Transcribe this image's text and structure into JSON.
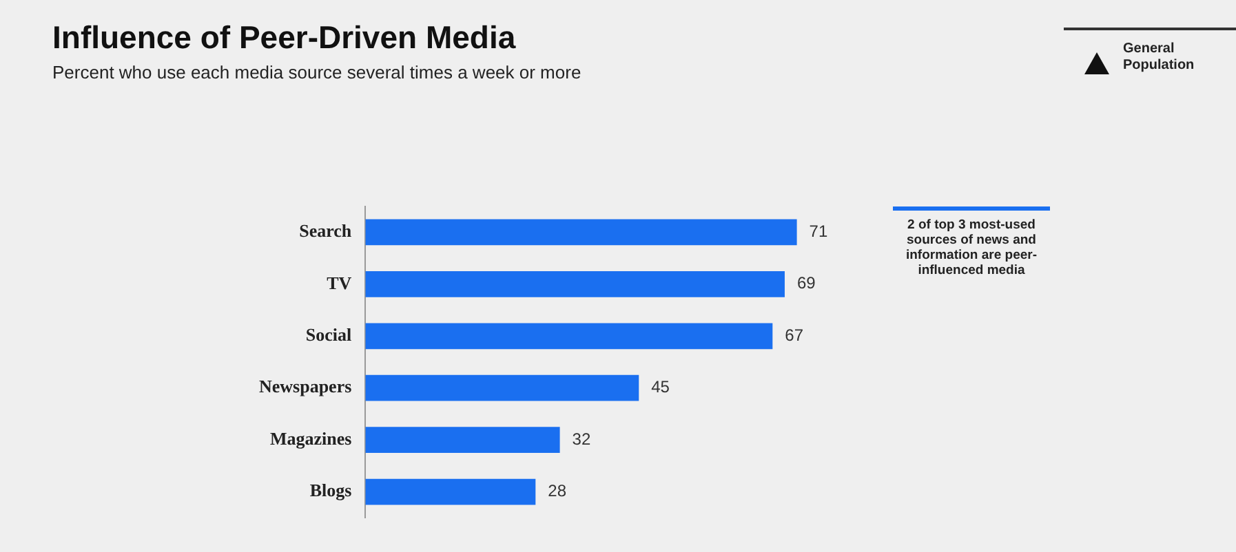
{
  "chart_data": {
    "type": "bar",
    "orientation": "horizontal",
    "title": "Influence of Peer-Driven Media",
    "subtitle": "Percent who use each media source several times a week or more",
    "categories": [
      "Search",
      "TV",
      "Social",
      "Newspapers",
      "Magazines",
      "Blogs"
    ],
    "values": [
      71,
      69,
      67,
      45,
      32,
      28
    ],
    "color": "#1a6ff0",
    "data_labels": true,
    "annotations": [
      "General Population",
      "2 of top 3 most-used sources of news and information are peer-influenced media"
    ]
  }
}
